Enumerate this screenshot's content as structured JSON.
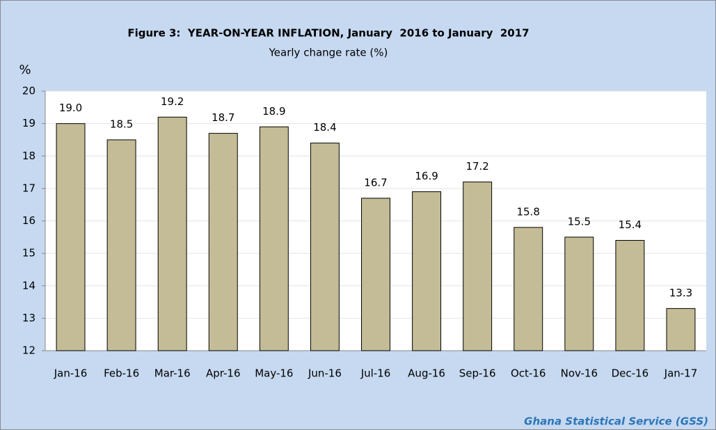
{
  "chart_data": {
    "type": "bar",
    "title": "Figure 3:  YEAR-ON-YEAR INFLATION, January  2016 to January  2017",
    "subtitle": "Yearly change rate (%)",
    "y_label": "%",
    "source": "Ghana Statistical Service (GSS)",
    "categories": [
      "Jan-16",
      "Feb-16",
      "Mar-16",
      "Apr-16",
      "May-16",
      "Jun-16",
      "Jul-16",
      "Aug-16",
      "Sep-16",
      "Oct-16",
      "Nov-16",
      "Dec-16",
      "Jan-17"
    ],
    "values": [
      19.0,
      18.5,
      19.2,
      18.7,
      18.9,
      18.4,
      16.7,
      16.9,
      17.2,
      15.8,
      15.5,
      15.4,
      13.3
    ],
    "value_labels": [
      "19.0",
      "18.5",
      "19.2",
      "18.7",
      "18.9",
      "18.4",
      "16.7",
      "16.9",
      "17.2",
      "15.8",
      "15.5",
      "15.4",
      "13.3"
    ],
    "color": "#c4bc96",
    "ylim": [
      12,
      20
    ],
    "yticks": [
      12,
      13,
      14,
      15,
      16,
      17,
      18,
      19,
      20
    ],
    "grid": true
  }
}
